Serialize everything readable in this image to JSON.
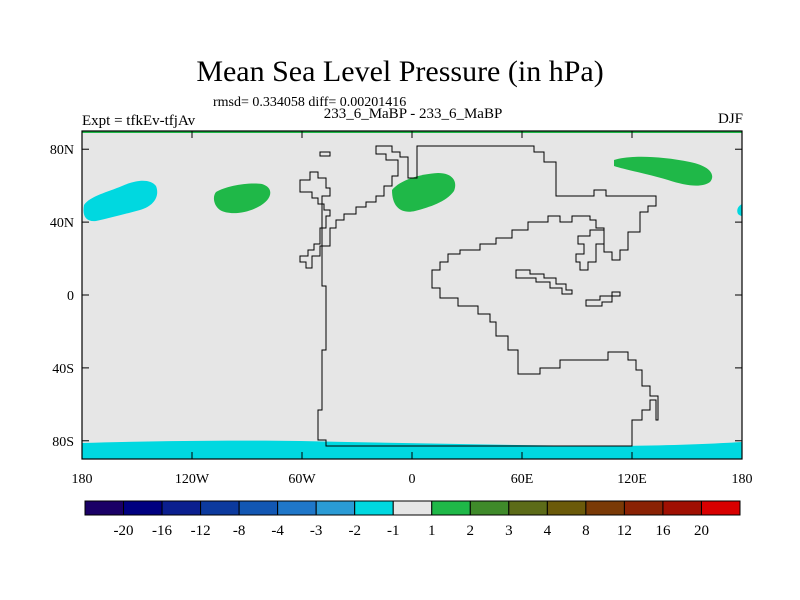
{
  "header": {
    "title": "Mean Sea Level Pressure (in hPa)",
    "stats": "rmsd= 0.334058 diff= 0.00201416",
    "left_label": "Expt = tfkEv-tfjAv",
    "center_label": "233_6_MaBP - 233_6_MaBP",
    "right_label": "DJF"
  },
  "map": {
    "x_ticks": [
      "180",
      "120W",
      "60W",
      "0",
      "60E",
      "120E",
      "180"
    ],
    "y_ticks": [
      "80N",
      "40N",
      "0",
      "40S",
      "80S"
    ],
    "background_color": "#e6e6e6",
    "coastline_color": "#000000"
  },
  "colorbar": {
    "labels": [
      "-20",
      "-16",
      "-12",
      "-8",
      "-4",
      "-3",
      "-2",
      "-1",
      "1",
      "2",
      "3",
      "4",
      "8",
      "12",
      "16",
      "20"
    ],
    "colors": [
      "#1a0066",
      "#000080",
      "#0b1f8f",
      "#0c3a9e",
      "#1257b3",
      "#1f77c9",
      "#2a9bd5",
      "#00d8e0",
      "#e6e6e6",
      "#1fb848",
      "#3f8a2a",
      "#5c6b18",
      "#6b5a0a",
      "#7a3a06",
      "#8a2204",
      "#a01002",
      "#d80000"
    ]
  }
}
